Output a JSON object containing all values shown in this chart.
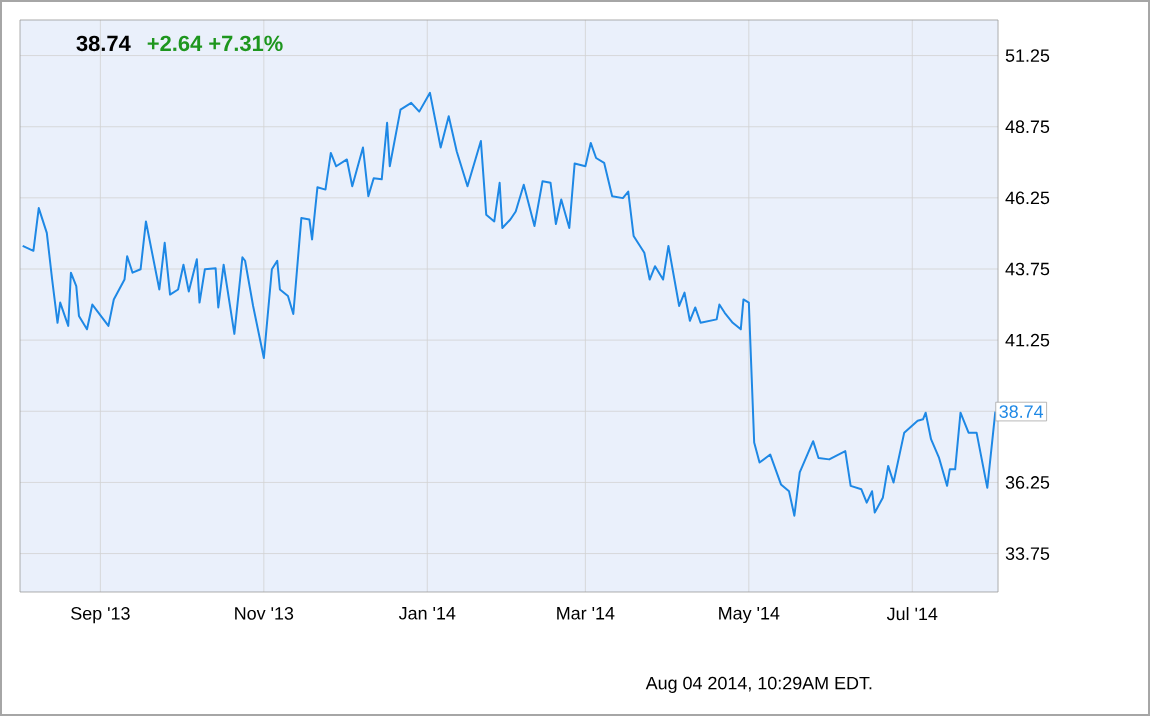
{
  "chart_data": {
    "type": "line",
    "title": "38.74",
    "subtitle": "+2.64 +7.31%",
    "annotations": [
      {
        "text": "38.74",
        "x": "2014-08-01",
        "y": 38.74
      },
      "Aug 04 2014, 10:29AM EDT."
    ],
    "x": [
      "2013-08-03",
      "2013-08-07",
      "2013-08-09",
      "2013-08-12",
      "2013-08-14",
      "2013-08-16",
      "2013-08-17",
      "2013-08-20",
      "2013-08-21",
      "2013-08-23",
      "2013-08-24",
      "2013-08-27",
      "2013-08-29",
      "2013-09-04",
      "2013-09-06",
      "2013-09-10",
      "2013-09-11",
      "2013-09-13",
      "2013-09-16",
      "2013-09-18",
      "2013-09-23",
      "2013-09-25",
      "2013-09-27",
      "2013-09-30",
      "2013-10-02",
      "2013-10-04",
      "2013-10-07",
      "2013-10-08",
      "2013-10-10",
      "2013-10-14",
      "2013-10-15",
      "2013-10-17",
      "2013-10-21",
      "2013-10-24",
      "2013-10-25",
      "2013-10-28",
      "2013-11-01",
      "2013-11-04",
      "2013-11-06",
      "2013-11-07",
      "2013-11-10",
      "2013-11-12",
      "2013-11-15",
      "2013-11-18",
      "2013-11-19",
      "2013-11-21",
      "2013-11-24",
      "2013-11-26",
      "2013-11-28",
      "2013-12-02",
      "2013-12-04",
      "2013-12-08",
      "2013-12-10",
      "2013-12-12",
      "2013-12-15",
      "2013-12-17",
      "2013-12-18",
      "2013-12-22",
      "2013-12-26",
      "2013-12-29",
      "2014-01-02",
      "2014-01-06",
      "2014-01-09",
      "2014-01-12",
      "2014-01-16",
      "2014-01-21",
      "2014-01-23",
      "2014-01-26",
      "2014-01-28",
      "2014-01-29",
      "2014-02-01",
      "2014-02-03",
      "2014-02-06",
      "2014-02-10",
      "2014-02-13",
      "2014-02-16",
      "2014-02-18",
      "2014-02-20",
      "2014-02-23",
      "2014-02-25",
      "2014-03-01",
      "2014-03-03",
      "2014-03-05",
      "2014-03-08",
      "2014-03-11",
      "2014-03-15",
      "2014-03-17",
      "2014-03-19",
      "2014-03-23",
      "2014-03-25",
      "2014-03-27",
      "2014-03-30",
      "2014-04-01",
      "2014-04-05",
      "2014-04-07",
      "2014-04-09",
      "2014-04-11",
      "2014-04-13",
      "2014-04-19",
      "2014-04-20",
      "2014-04-22",
      "2014-04-25",
      "2014-04-28",
      "2014-04-29",
      "2014-05-01",
      "2014-05-03",
      "2014-05-05",
      "2014-05-09",
      "2014-05-13",
      "2014-05-16",
      "2014-05-18",
      "2014-05-20",
      "2014-05-25",
      "2014-05-27",
      "2014-05-31",
      "2014-06-06",
      "2014-06-08",
      "2014-06-12",
      "2014-06-14",
      "2014-06-16",
      "2014-06-17",
      "2014-06-20",
      "2014-06-22",
      "2014-06-24",
      "2014-06-28",
      "2014-07-03",
      "2014-07-05",
      "2014-07-06",
      "2014-07-08",
      "2014-07-11",
      "2014-07-14",
      "2014-07-15",
      "2014-07-17",
      "2014-07-19",
      "2014-07-22",
      "2014-07-25",
      "2014-07-29",
      "2014-08-01"
    ],
    "values": [
      44.56,
      44.39,
      45.89,
      45.02,
      43.38,
      41.86,
      42.57,
      41.75,
      43.62,
      43.15,
      42.1,
      41.63,
      42.5,
      41.75,
      42.68,
      43.38,
      44.2,
      43.62,
      43.74,
      45.42,
      43.03,
      44.67,
      42.85,
      43.03,
      43.9,
      42.96,
      44.09,
      42.57,
      43.74,
      43.78,
      42.4,
      43.9,
      41.47,
      44.16,
      44.04,
      42.45,
      40.62,
      43.74,
      44.04,
      43.03,
      42.8,
      42.17,
      45.54,
      45.49,
      44.79,
      46.62,
      46.54,
      47.83,
      47.36,
      47.6,
      46.66,
      48.02,
      46.31,
      46.94,
      46.9,
      48.89,
      47.36,
      49.35,
      49.59,
      49.28,
      49.94,
      48.02,
      49.12,
      47.88,
      46.66,
      48.25,
      45.66,
      45.42,
      46.78,
      45.19,
      45.49,
      45.77,
      46.71,
      45.26,
      46.83,
      46.78,
      45.33,
      46.19,
      45.19,
      47.46,
      47.36,
      48.18,
      47.65,
      47.48,
      46.31,
      46.24,
      46.47,
      44.91,
      44.32,
      43.38,
      43.85,
      43.38,
      44.56,
      42.45,
      42.92,
      41.93,
      42.4,
      41.86,
      41.98,
      42.5,
      42.21,
      41.86,
      41.63,
      42.68,
      42.57,
      37.65,
      36.95,
      37.23,
      36.18,
      35.94,
      35.08,
      36.6,
      37.7,
      37.11,
      37.06,
      37.35,
      36.13,
      36.01,
      35.54,
      35.94,
      35.19,
      35.71,
      36.83,
      36.25,
      38.0,
      38.42,
      38.47,
      38.7,
      37.77,
      37.11,
      36.13,
      36.71,
      36.71,
      38.7,
      38.0,
      38.0,
      36.06,
      38.74
    ],
    "color": "#1e88e5",
    "xlim": [
      "2013-08-02",
      "2014-08-02"
    ],
    "xticks": [
      {
        "value": "2013-09-01",
        "label": "Sep '13"
      },
      {
        "value": "2013-11-01",
        "label": "Nov '13"
      },
      {
        "value": "2014-01-01",
        "label": "Jan '14"
      },
      {
        "value": "2014-03-01",
        "label": "Mar '14"
      },
      {
        "value": "2014-05-01",
        "label": "May '14"
      },
      {
        "value": "2014-07-01",
        "label": "Jul '14"
      }
    ],
    "ylim": [
      32.4,
      52.5
    ],
    "yticks": [
      33.75,
      36.25,
      {
        "value": 38.75,
        "label": null
      },
      41.25,
      43.75,
      46.25,
      48.75,
      51.25
    ],
    "grid": true,
    "marker": "none",
    "line_style": "solid"
  }
}
